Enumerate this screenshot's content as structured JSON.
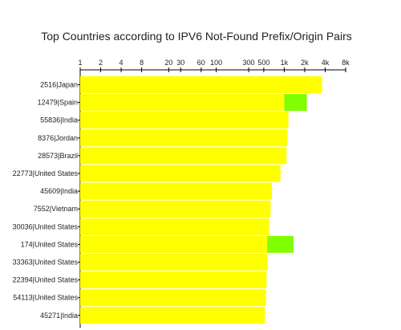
{
  "chart_data": {
    "type": "bar",
    "orientation": "horizontal",
    "stacked": true,
    "title": "Top Countries according to IPV6 Not-Found Prefix/Origin Pairs",
    "xlabel": "",
    "ylabel": "",
    "x_scale": "log2",
    "x_ticks": [
      {
        "value": 1,
        "label": "1"
      },
      {
        "value": 2,
        "label": "2"
      },
      {
        "value": 4,
        "label": "4"
      },
      {
        "value": 8,
        "label": "8"
      },
      {
        "value": 20,
        "label": "20"
      },
      {
        "value": 30,
        "label": "30"
      },
      {
        "value": 60,
        "label": "60"
      },
      {
        "value": 100,
        "label": "100"
      },
      {
        "value": 300,
        "label": "300"
      },
      {
        "value": 500,
        "label": "500"
      },
      {
        "value": 1000,
        "label": "1k"
      },
      {
        "value": 2000,
        "label": "2k"
      },
      {
        "value": 4000,
        "label": "4k"
      },
      {
        "value": 8000,
        "label": "8k"
      }
    ],
    "xlim": [
      1,
      8000
    ],
    "categories": [
      "2516|Japan",
      "12479|Spain",
      "55836|India",
      "8376|Jordan",
      "28573|Brazil",
      "22773|United States",
      "45609|India",
      "7552|Vietnam",
      "30036|United States",
      "174|United States",
      "33363|United States",
      "22394|United States",
      "54113|United States",
      "45271|India"
    ],
    "series": [
      {
        "color": "#ffff00",
        "values": [
          3600,
          1000,
          1150,
          1120,
          1080,
          880,
          660,
          630,
          600,
          560,
          570,
          550,
          540,
          520
        ]
      },
      {
        "color": "#80ff00",
        "values": [
          0,
          1150,
          0,
          0,
          0,
          0,
          0,
          0,
          0,
          810,
          0,
          0,
          0,
          0
        ]
      }
    ],
    "grid": false,
    "legend": "none"
  }
}
